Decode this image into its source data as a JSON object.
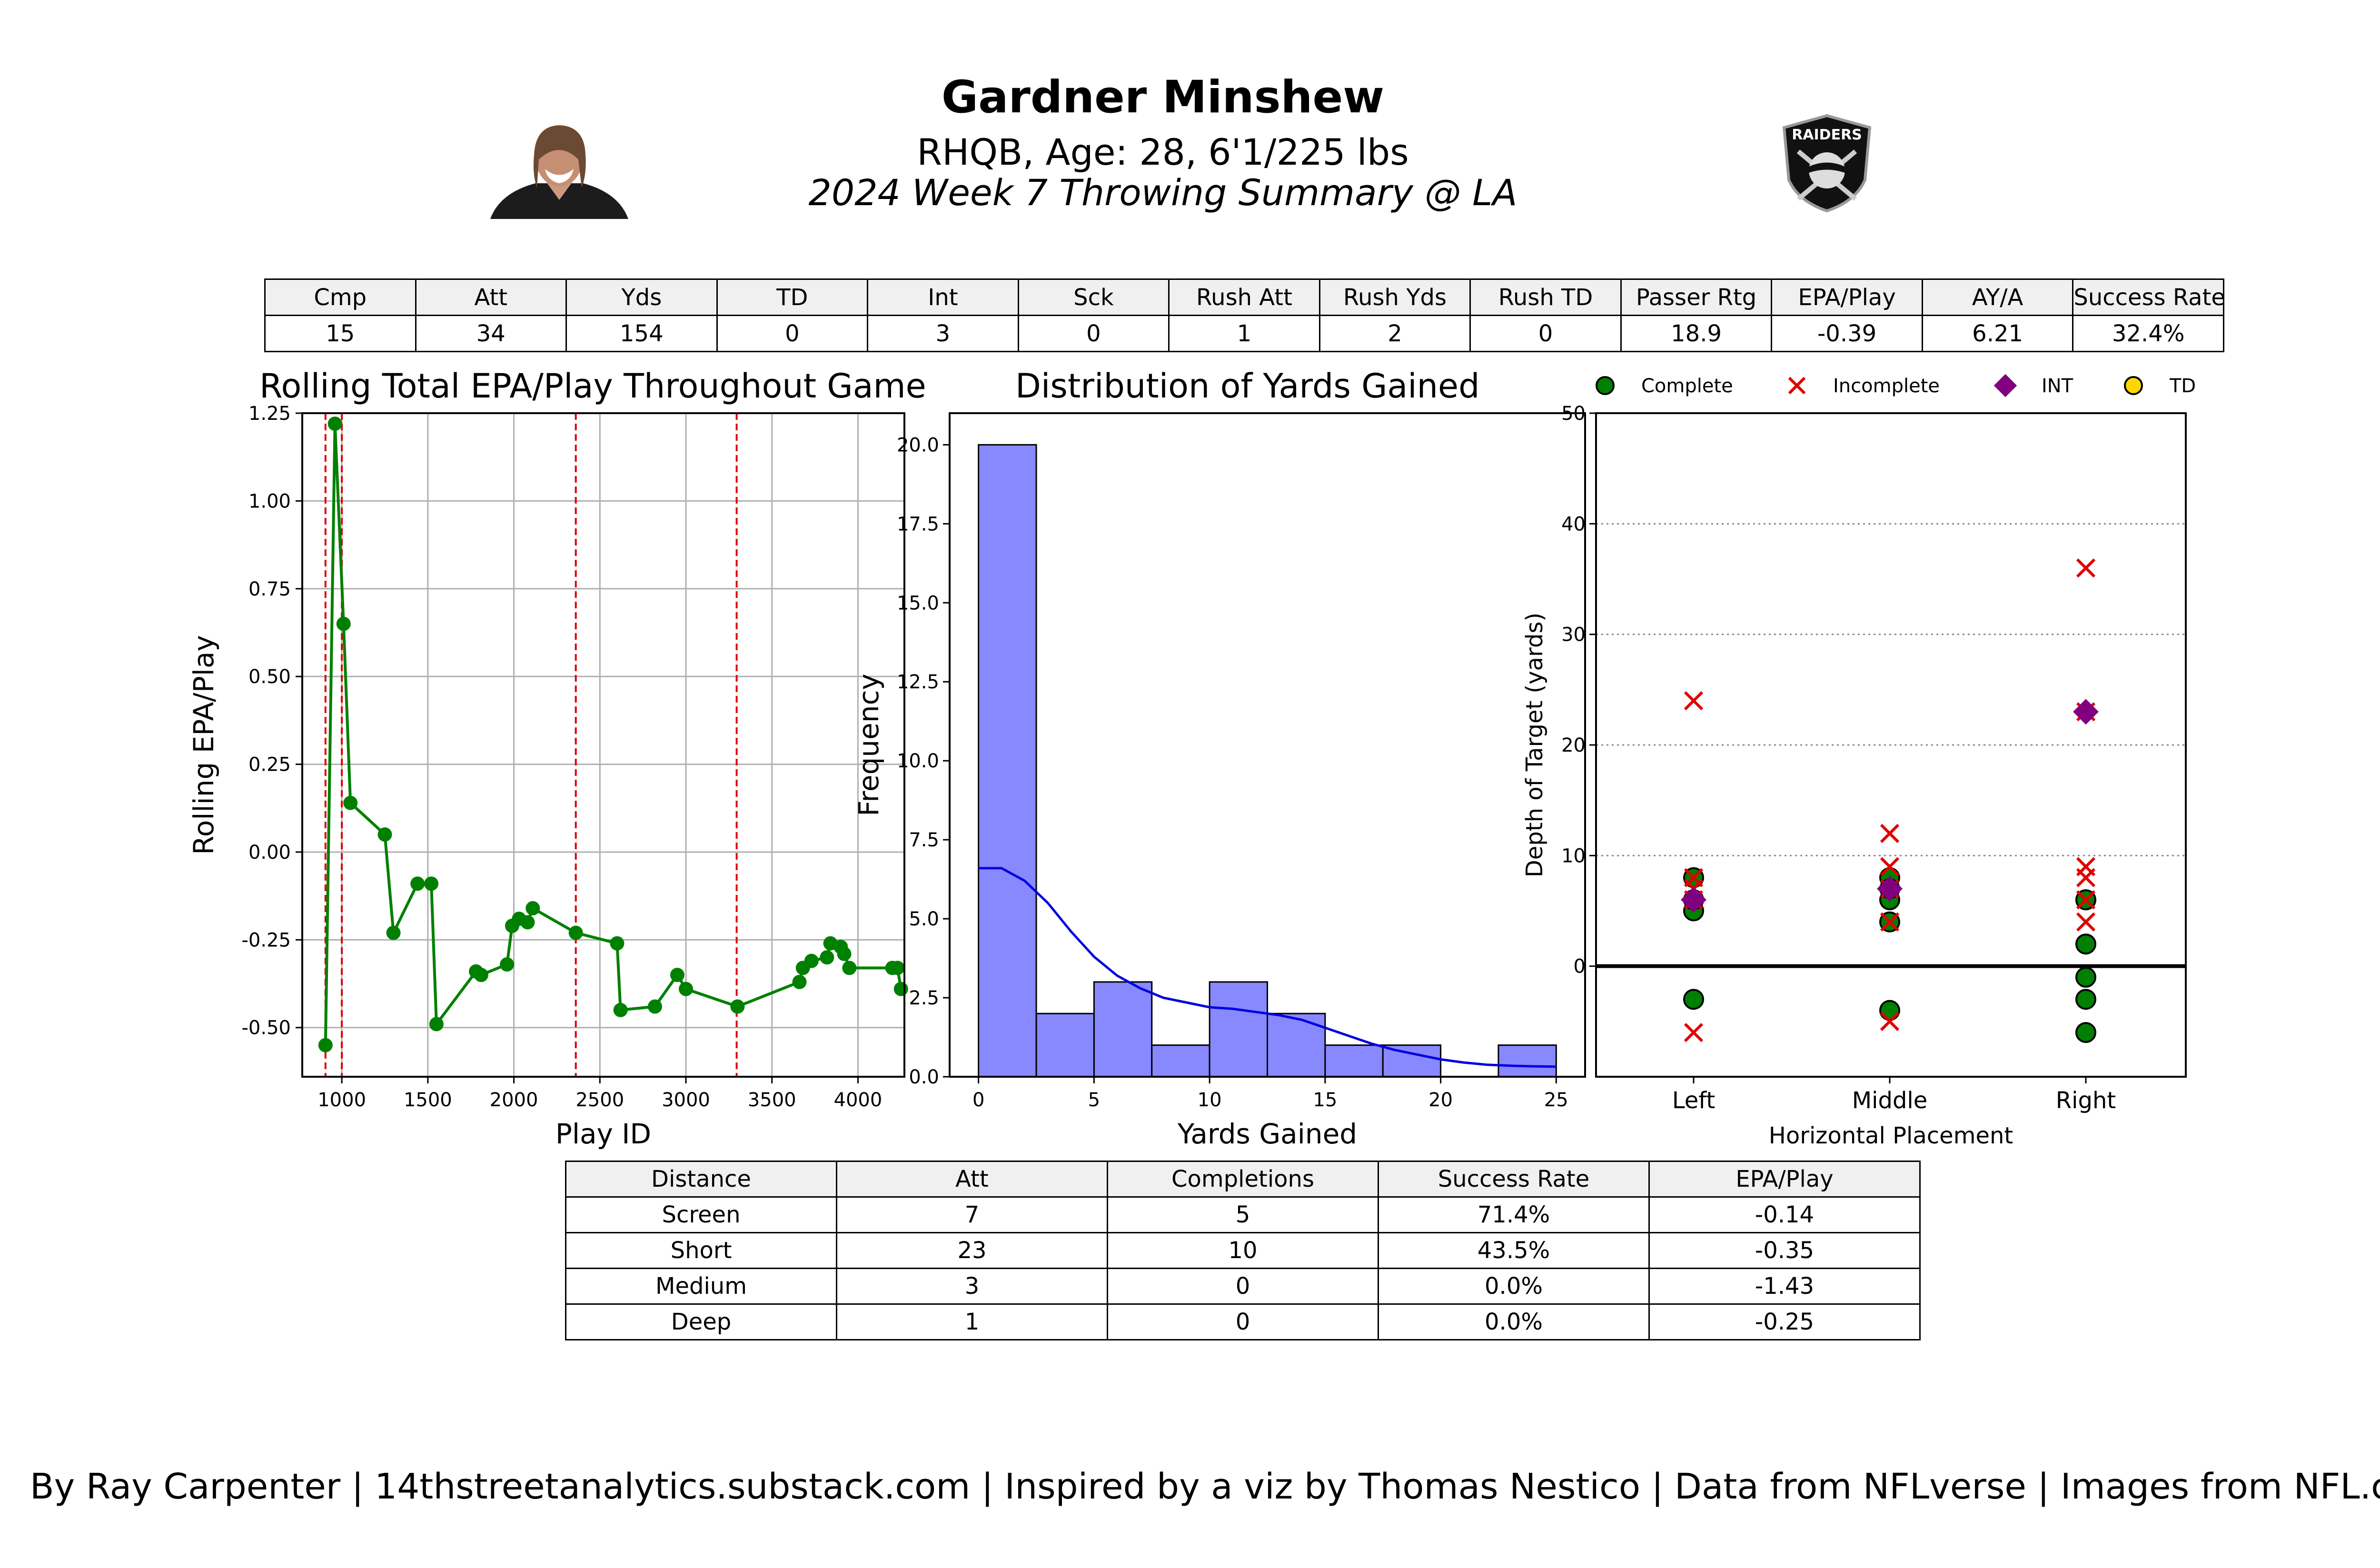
{
  "header": {
    "name": "Gardner Minshew",
    "subtitle": "RHQB, Age: 28, 6'1/225 lbs",
    "game": "2024 Week 7 Throwing Summary @ LA",
    "team_logo_text": "RAIDERS"
  },
  "stats": {
    "headers": [
      "Cmp",
      "Att",
      "Yds",
      "TD",
      "Int",
      "Sck",
      "Rush Att",
      "Rush Yds",
      "Rush TD",
      "Passer Rtg",
      "EPA/Play",
      "AY/A",
      "Success Rate"
    ],
    "values": [
      "15",
      "34",
      "154",
      "0",
      "3",
      "0",
      "1",
      "2",
      "0",
      "18.9",
      "-0.39",
      "6.21",
      "32.4%"
    ]
  },
  "panels": {
    "epa_title": "Rolling Total EPA/Play Throughout Game",
    "hist_title": "Distribution of Yards Gained"
  },
  "distance_table": {
    "headers": [
      "Distance",
      "Att",
      "Completions",
      "Success Rate",
      "EPA/Play"
    ],
    "rows": [
      [
        "Screen",
        "7",
        "5",
        "71.4%",
        "-0.14"
      ],
      [
        "Short",
        "23",
        "10",
        "43.5%",
        "-0.35"
      ],
      [
        "Medium",
        "3",
        "0",
        "0.0%",
        "-1.43"
      ],
      [
        "Deep",
        "1",
        "0",
        "0.0%",
        "-0.25"
      ]
    ]
  },
  "credits": "By Ray Carpenter | 14thstreetanalytics.substack.com | Inspired by a viz by Thomas Nestico | Data from NFLverse | Images from NFL.com",
  "chart_data": [
    {
      "type": "line",
      "title": "Rolling Total EPA/Play Throughout Game",
      "xlabel": "Play ID",
      "ylabel": "Rolling EPA/Play",
      "xlim": [
        770,
        4270
      ],
      "ylim": [
        -0.64,
        1.25
      ],
      "xticks": [
        1000,
        1500,
        2000,
        2500,
        3000,
        3500,
        4000
      ],
      "yticks": [
        -0.5,
        -0.25,
        0.0,
        0.25,
        0.5,
        0.75,
        1.0,
        1.25
      ],
      "grid": true,
      "color": "#008000",
      "vlines": [
        905,
        1000,
        2360,
        3295
      ],
      "vline_color": "#e00000",
      "x": [
        905,
        960,
        1010,
        1050,
        1250,
        1300,
        1440,
        1520,
        1550,
        1780,
        1810,
        1960,
        1990,
        2030,
        2080,
        2110,
        2360,
        2600,
        2620,
        2820,
        2950,
        3000,
        3300,
        3660,
        3680,
        3730,
        3820,
        3840,
        3900,
        3920,
        3950,
        4200,
        4230,
        4250
      ],
      "y": [
        -0.55,
        1.22,
        0.65,
        0.14,
        0.05,
        -0.23,
        -0.09,
        -0.09,
        -0.49,
        -0.34,
        -0.35,
        -0.32,
        -0.21,
        -0.19,
        -0.2,
        -0.16,
        -0.23,
        -0.26,
        -0.45,
        -0.44,
        -0.35,
        -0.39,
        -0.44,
        -0.37,
        -0.33,
        -0.31,
        -0.3,
        -0.26,
        -0.27,
        -0.29,
        -0.33,
        -0.33,
        -0.33,
        -0.39
      ]
    },
    {
      "type": "bar",
      "title": "Distribution of Yards Gained",
      "xlabel": "Yards Gained",
      "ylabel": "Frequency",
      "xlim": [
        -1.25,
        26.25
      ],
      "ylim": [
        0,
        21
      ],
      "xticks": [
        0,
        5,
        10,
        15,
        20,
        25
      ],
      "yticks": [
        0.0,
        2.5,
        5.0,
        7.5,
        10.0,
        12.5,
        15.0,
        17.5,
        20.0
      ],
      "bin_edges": [
        0,
        2.5,
        5,
        7.5,
        10,
        12.5,
        15,
        17.5,
        20,
        22.5,
        25
      ],
      "values": [
        20,
        2,
        3,
        1,
        3,
        2,
        1,
        1,
        0,
        1
      ],
      "bar_color": "#8888ff",
      "kde": {
        "color": "#0000e0",
        "x": [
          0,
          1,
          2,
          3,
          4,
          5,
          6,
          7,
          8,
          9,
          10,
          11,
          12,
          13,
          14,
          15,
          16,
          17,
          18,
          19,
          20,
          21,
          22,
          23,
          24,
          25
        ],
        "y": [
          6.6,
          6.6,
          6.2,
          5.5,
          4.6,
          3.8,
          3.2,
          2.8,
          2.5,
          2.35,
          2.2,
          2.15,
          2.05,
          1.95,
          1.8,
          1.55,
          1.3,
          1.05,
          0.85,
          0.7,
          0.55,
          0.45,
          0.38,
          0.35,
          0.33,
          0.32
        ]
      }
    },
    {
      "type": "scatter",
      "xlabel": "Horizontal Placement",
      "ylabel": "Depth of Target (yards)",
      "categories": [
        "Left",
        "Middle",
        "Right"
      ],
      "ylim": [
        -10,
        50
      ],
      "yticks": [
        0,
        10,
        20,
        30,
        40,
        50
      ],
      "grid": "y-dotted",
      "legend": {
        "position": "top",
        "entries": [
          "Complete",
          "Incomplete",
          "INT",
          "TD"
        ]
      },
      "colors": {
        "Complete": "#008000",
        "Incomplete": "#e00000",
        "INT": "#800080",
        "TD": "#ffd700"
      },
      "series": [
        {
          "name": "Complete",
          "points": [
            [
              "Left",
              8
            ],
            [
              "Left",
              5
            ],
            [
              "Left",
              -3
            ],
            [
              "Middle",
              8
            ],
            [
              "Middle",
              6
            ],
            [
              "Middle",
              4
            ],
            [
              "Middle",
              -4
            ],
            [
              "Right",
              6
            ],
            [
              "Right",
              6
            ],
            [
              "Right",
              2
            ],
            [
              "Right",
              -1
            ],
            [
              "Right",
              -3
            ],
            [
              "Right",
              -6
            ],
            [
              "Left",
              6
            ],
            [
              "Middle",
              7
            ]
          ]
        },
        {
          "name": "Incomplete",
          "points": [
            [
              "Left",
              24
            ],
            [
              "Left",
              8
            ],
            [
              "Left",
              7
            ],
            [
              "Left",
              -6
            ],
            [
              "Middle",
              12
            ],
            [
              "Middle",
              9
            ],
            [
              "Middle",
              4
            ],
            [
              "Middle",
              -5
            ],
            [
              "Right",
              36
            ],
            [
              "Right",
              23
            ],
            [
              "Right",
              9
            ],
            [
              "Right",
              8
            ],
            [
              "Right",
              6
            ],
            [
              "Right",
              4
            ],
            [
              "Right",
              6
            ],
            [
              "Left",
              6
            ],
            [
              "Middle",
              7
            ]
          ]
        },
        {
          "name": "INT",
          "points": [
            [
              "Left",
              6
            ],
            [
              "Middle",
              7
            ],
            [
              "Right",
              23
            ]
          ]
        },
        {
          "name": "TD",
          "points": []
        }
      ]
    }
  ]
}
